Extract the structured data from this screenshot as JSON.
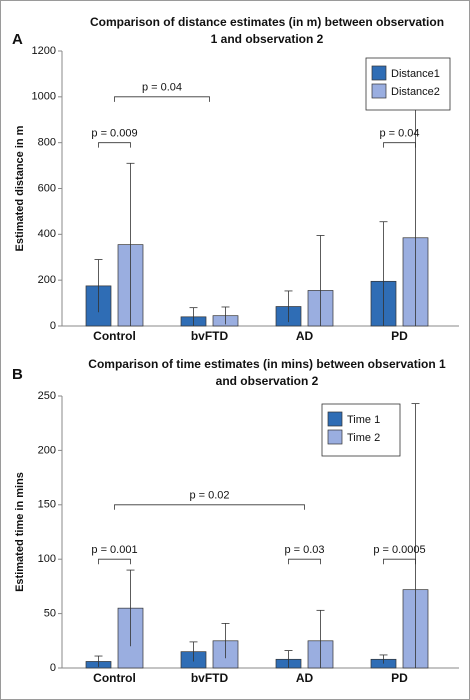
{
  "chart_data": [
    {
      "type": "bar",
      "panel_label": "A",
      "title": "Comparison of distance estimates (in m) between observation 1 and observation 2",
      "ylabel": "Estimated distance in m",
      "categories": [
        "Control",
        "bvFTD",
        "AD",
        "PD"
      ],
      "series": [
        {
          "name": "Distance1",
          "color": "#2f6db5",
          "values": [
            175,
            40,
            85,
            195
          ],
          "errors": [
            115,
            40,
            68,
            260
          ]
        },
        {
          "name": "Distance2",
          "color": "#9aaee0",
          "values": [
            355,
            45,
            155,
            385
          ],
          "errors": [
            355,
            38,
            240,
            625
          ]
        }
      ],
      "ylim": [
        0,
        1200
      ],
      "yticks": [
        0,
        200,
        400,
        600,
        800,
        1000,
        1200
      ],
      "legend": "top-right",
      "annotations": [
        {
          "text": "p = 0.009",
          "span": [
            0,
            0
          ],
          "y": 800
        },
        {
          "text": "p = 0.04",
          "span": [
            0,
            1
          ],
          "y": 1000
        },
        {
          "text": "p = 0.04",
          "span": [
            3,
            3
          ],
          "y": 800
        }
      ]
    },
    {
      "type": "bar",
      "panel_label": "B",
      "title": "Comparison of time estimates (in mins) between observation 1 and observation 2",
      "ylabel": "Estimated time in mins",
      "categories": [
        "Control",
        "bvFTD",
        "AD",
        "PD"
      ],
      "series": [
        {
          "name": "Time 1",
          "color": "#2f6db5",
          "values": [
            6,
            15,
            8,
            8
          ],
          "errors": [
            5,
            9,
            8,
            4
          ]
        },
        {
          "name": "Time 2",
          "color": "#9aaee0",
          "values": [
            55,
            25,
            25,
            72
          ],
          "errors": [
            35,
            16,
            28,
            171
          ]
        }
      ],
      "ylim": [
        0,
        250
      ],
      "yticks": [
        0,
        50,
        100,
        150,
        200,
        250
      ],
      "legend": "top-right",
      "annotations": [
        {
          "text": "p = 0.001",
          "span": [
            0,
            0
          ],
          "y": 100
        },
        {
          "text": "p = 0.02",
          "span": [
            0,
            2
          ],
          "y": 150
        },
        {
          "text": "p = 0.03",
          "span": [
            2,
            2
          ],
          "y": 100
        },
        {
          "text": "p = 0.0005",
          "span": [
            3,
            3
          ],
          "y": 100
        }
      ]
    }
  ]
}
